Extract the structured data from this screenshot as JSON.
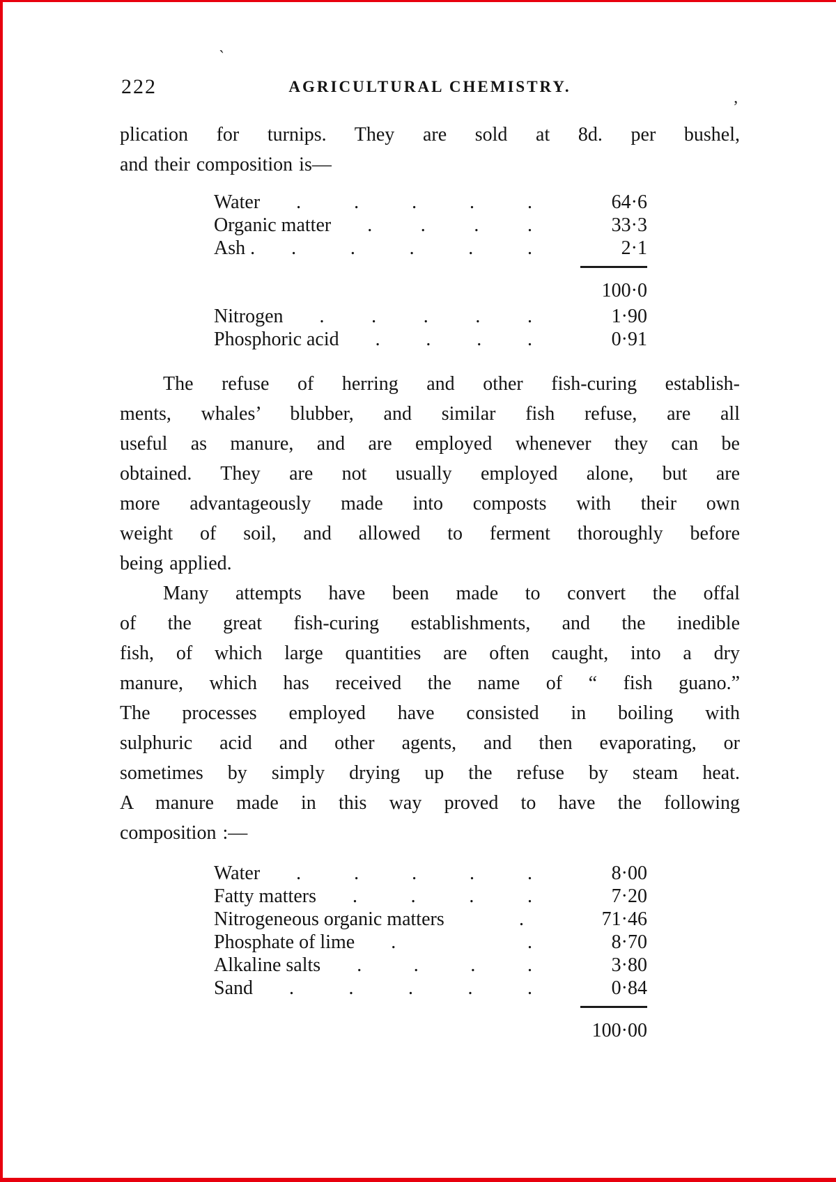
{
  "page": {
    "number": "222",
    "header": "AGRICULTURAL CHEMISTRY."
  },
  "noise": {
    "grave_mark": "`",
    "tick_mark": "ʼ"
  },
  "intro": {
    "lines": [
      "plication for turnips.  They are sold at 8d. per bushel,",
      "and their composition is—"
    ]
  },
  "table1": {
    "rows": [
      {
        "label": "Water",
        "dots": ". . . . .",
        "value": "64·6"
      },
      {
        "label": "Organic matter",
        "dots": ". . . .",
        "value": "33·3"
      },
      {
        "label": "Ash .",
        "dots": ". . . . .",
        "value": "2·1"
      }
    ],
    "total": "100·0",
    "extra_rows": [
      {
        "label": "Nitrogen",
        "dots": ". . . . .",
        "value": "1·90"
      },
      {
        "label": "Phosphoric acid",
        "dots": ". . . .",
        "value": "0·91"
      }
    ]
  },
  "para_fish_refuse": {
    "lines": [
      "The refuse of herring and other fish-curing establish-",
      "ments, whales’ blubber, and similar fish refuse, are all",
      "useful as manure, and are employed whenever they can be",
      "obtained.  They are not usually employed alone, but are",
      "more advantageously made into composts with their own",
      "weight of soil, and allowed to ferment thoroughly before",
      "being applied."
    ]
  },
  "para_fish_guano": {
    "lines": [
      "Many attempts have been made to convert the offal",
      "of the great fish-curing establishments, and the inedible",
      "fish, of which large quantities are often caught, into a dry",
      "manure, which has received the name of “ fish guano.”",
      "The processes employed have consisted in boiling with",
      "sulphuric acid and other agents, and then evaporating, or",
      "sometimes by simply drying up the refuse by steam heat.",
      "A manure made in this way proved to have the following",
      "composition :—"
    ]
  },
  "table2": {
    "rows": [
      {
        "label": "Water",
        "dots": ". . . . .",
        "value": "8·00"
      },
      {
        "label": "Fatty matters",
        "dots": ". . . .",
        "value": "7·20"
      },
      {
        "label": "Nitrogeneous organic matters",
        "dots": ".",
        "value": "71·46"
      },
      {
        "label": "Phosphate of lime",
        "dots": ". .",
        "value": "8·70"
      },
      {
        "label": "Alkaline salts",
        "dots": ". . . .",
        "value": "3·80"
      },
      {
        "label": "Sand",
        "dots": ". . . . .",
        "value": "0·84"
      }
    ],
    "total": "100·00"
  }
}
